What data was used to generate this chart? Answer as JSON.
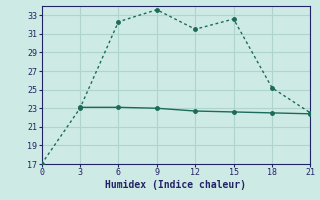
{
  "xlabel": "Humidex (Indice chaleur)",
  "line1_x": [
    0,
    3,
    6,
    9,
    12,
    15,
    18,
    21
  ],
  "line1_y": [
    17,
    23,
    32.3,
    33.6,
    31.5,
    32.6,
    25.2,
    22.5
  ],
  "line2_x": [
    3,
    6,
    9,
    12,
    15,
    18,
    21
  ],
  "line2_y": [
    23.1,
    23.1,
    23.0,
    22.7,
    22.6,
    22.5,
    22.4
  ],
  "line_color": "#1b6b5a",
  "bg_color": "#ceeae4",
  "grid_color": "#afd4cc",
  "tick_color": "#222266",
  "xlim": [
    0,
    21
  ],
  "ylim": [
    17,
    34
  ],
  "xticks": [
    0,
    3,
    6,
    9,
    12,
    15,
    18,
    21
  ],
  "yticks": [
    17,
    19,
    21,
    23,
    25,
    27,
    29,
    31,
    33
  ]
}
